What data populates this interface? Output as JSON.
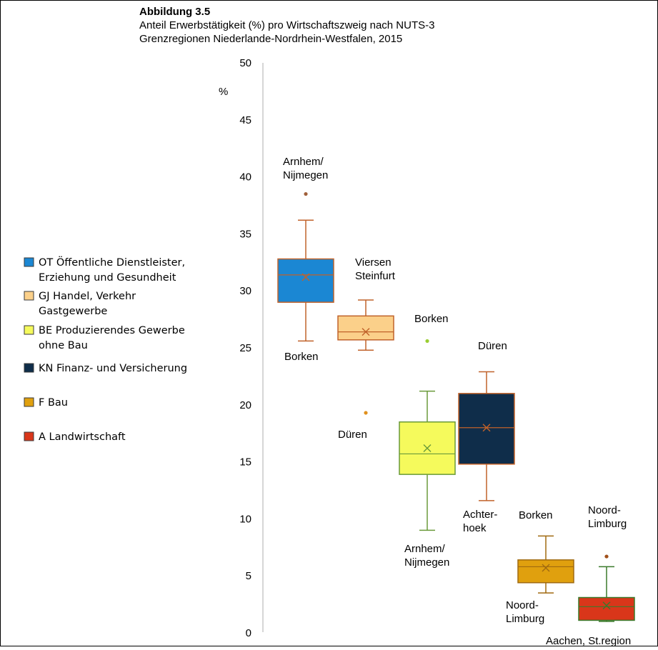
{
  "chart_data": {
    "type": "boxplot",
    "title": "Abbildung 3.5",
    "subtitle_lines": [
      "Anteil Erwerbstätigkeit (%) pro Wirtschaftszweig nach NUTS-3",
      "Grenzregionen Niederlande-Nordrhein-Westfalen, 2015"
    ],
    "ylabel": "%",
    "ylim": [
      0,
      50
    ],
    "yticks": [
      0,
      5,
      10,
      15,
      20,
      25,
      30,
      35,
      40,
      45,
      50
    ],
    "grid": false,
    "legend_placement": "left",
    "legend": [
      {
        "label_lines": [
          "OT Öffentliche Dienstleister,",
          "Erziehung und Gesundheit"
        ],
        "color": "#1b87d3"
      },
      {
        "label_lines": [
          "GJ Handel, Verkehr",
          "Gastgewerbe"
        ],
        "color": "#fbd08a"
      },
      {
        "label_lines": [
          "BE Produzierendes Gewerbe",
          "ohne Bau"
        ],
        "color": "#f5fa5c"
      },
      {
        "label_lines": [
          "KN Finanz- und Versicherung"
        ],
        "color": "#0f2d4a"
      },
      {
        "label_lines": [
          "F Bau"
        ],
        "color": "#e0a00e"
      },
      {
        "label_lines": [
          "A Landwirtschaft"
        ],
        "color": "#d9361a"
      }
    ],
    "series": [
      {
        "color": "#1b87d3",
        "line_color": "#c0622a",
        "whisker_low": 25.6,
        "q1": 29.0,
        "median": 31.4,
        "mean": 31.2,
        "q3": 32.8,
        "whisker_high": 36.2,
        "outliers": [
          38.5
        ],
        "outlier_color": "#a0603a",
        "annotations": [
          {
            "lines": [
              "Arnhem/",
              "Nijmegen"
            ],
            "where": "above"
          },
          {
            "lines": [
              "Borken"
            ],
            "where": "below"
          }
        ]
      },
      {
        "color": "#fbd08a",
        "line_color": "#c0622a",
        "whisker_low": 24.8,
        "q1": 25.7,
        "median": 26.4,
        "mean": 26.4,
        "q3": 27.8,
        "whisker_high": 29.2,
        "outliers": [
          19.3
        ],
        "outlier_color": "#e0901e",
        "annotations": [
          {
            "lines": [
              "Viersen",
              "Steinfurt"
            ],
            "where": "above"
          },
          {
            "lines": [
              "Düren"
            ],
            "where": "below"
          }
        ]
      },
      {
        "color": "#f5fa5c",
        "line_color": "#6a9a3a",
        "whisker_low": 9.0,
        "q1": 13.9,
        "median": 15.7,
        "mean": 16.2,
        "q3": 18.5,
        "whisker_high": 21.2,
        "outliers": [
          25.6
        ],
        "outlier_color": "#9acd32",
        "annotations": [
          {
            "lines": [
              "Borken"
            ],
            "where": "above"
          },
          {
            "lines": [
              "Arnhem/",
              "Nijmegen"
            ],
            "where": "below"
          }
        ]
      },
      {
        "color": "#0f2d4a",
        "line_color": "#c0622a",
        "whisker_low": 11.6,
        "q1": 14.8,
        "median": 18.0,
        "mean": 18.0,
        "q3": 21.0,
        "whisker_high": 22.9,
        "outliers": [],
        "annotations": [
          {
            "lines": [
              "Düren"
            ],
            "where": "above"
          },
          {
            "lines": [
              "Achter-",
              "hoek"
            ],
            "where": "below"
          }
        ]
      },
      {
        "color": "#e0a00e",
        "line_color": "#a06a10",
        "whisker_low": 3.5,
        "q1": 4.4,
        "median": 5.8,
        "mean": 5.7,
        "q3": 6.4,
        "whisker_high": 8.5,
        "outliers": [],
        "annotations": [
          {
            "lines": [
              "Borken"
            ],
            "where": "above"
          },
          {
            "lines": [
              "Noord-",
              "Limburg"
            ],
            "where": "below"
          }
        ]
      },
      {
        "color": "#d9361a",
        "line_color": "#3a7a2a",
        "whisker_low": 1.0,
        "q1": 1.1,
        "median": 2.3,
        "mean": 2.4,
        "q3": 3.1,
        "whisker_high": 5.8,
        "outliers": [
          6.7
        ],
        "outlier_color": "#a0501a",
        "annotations": [
          {
            "lines": [
              "Noord-",
              "Limburg"
            ],
            "where": "above"
          },
          {
            "lines": [
              "Aachen, St.region"
            ],
            "where": "below"
          }
        ]
      }
    ]
  }
}
